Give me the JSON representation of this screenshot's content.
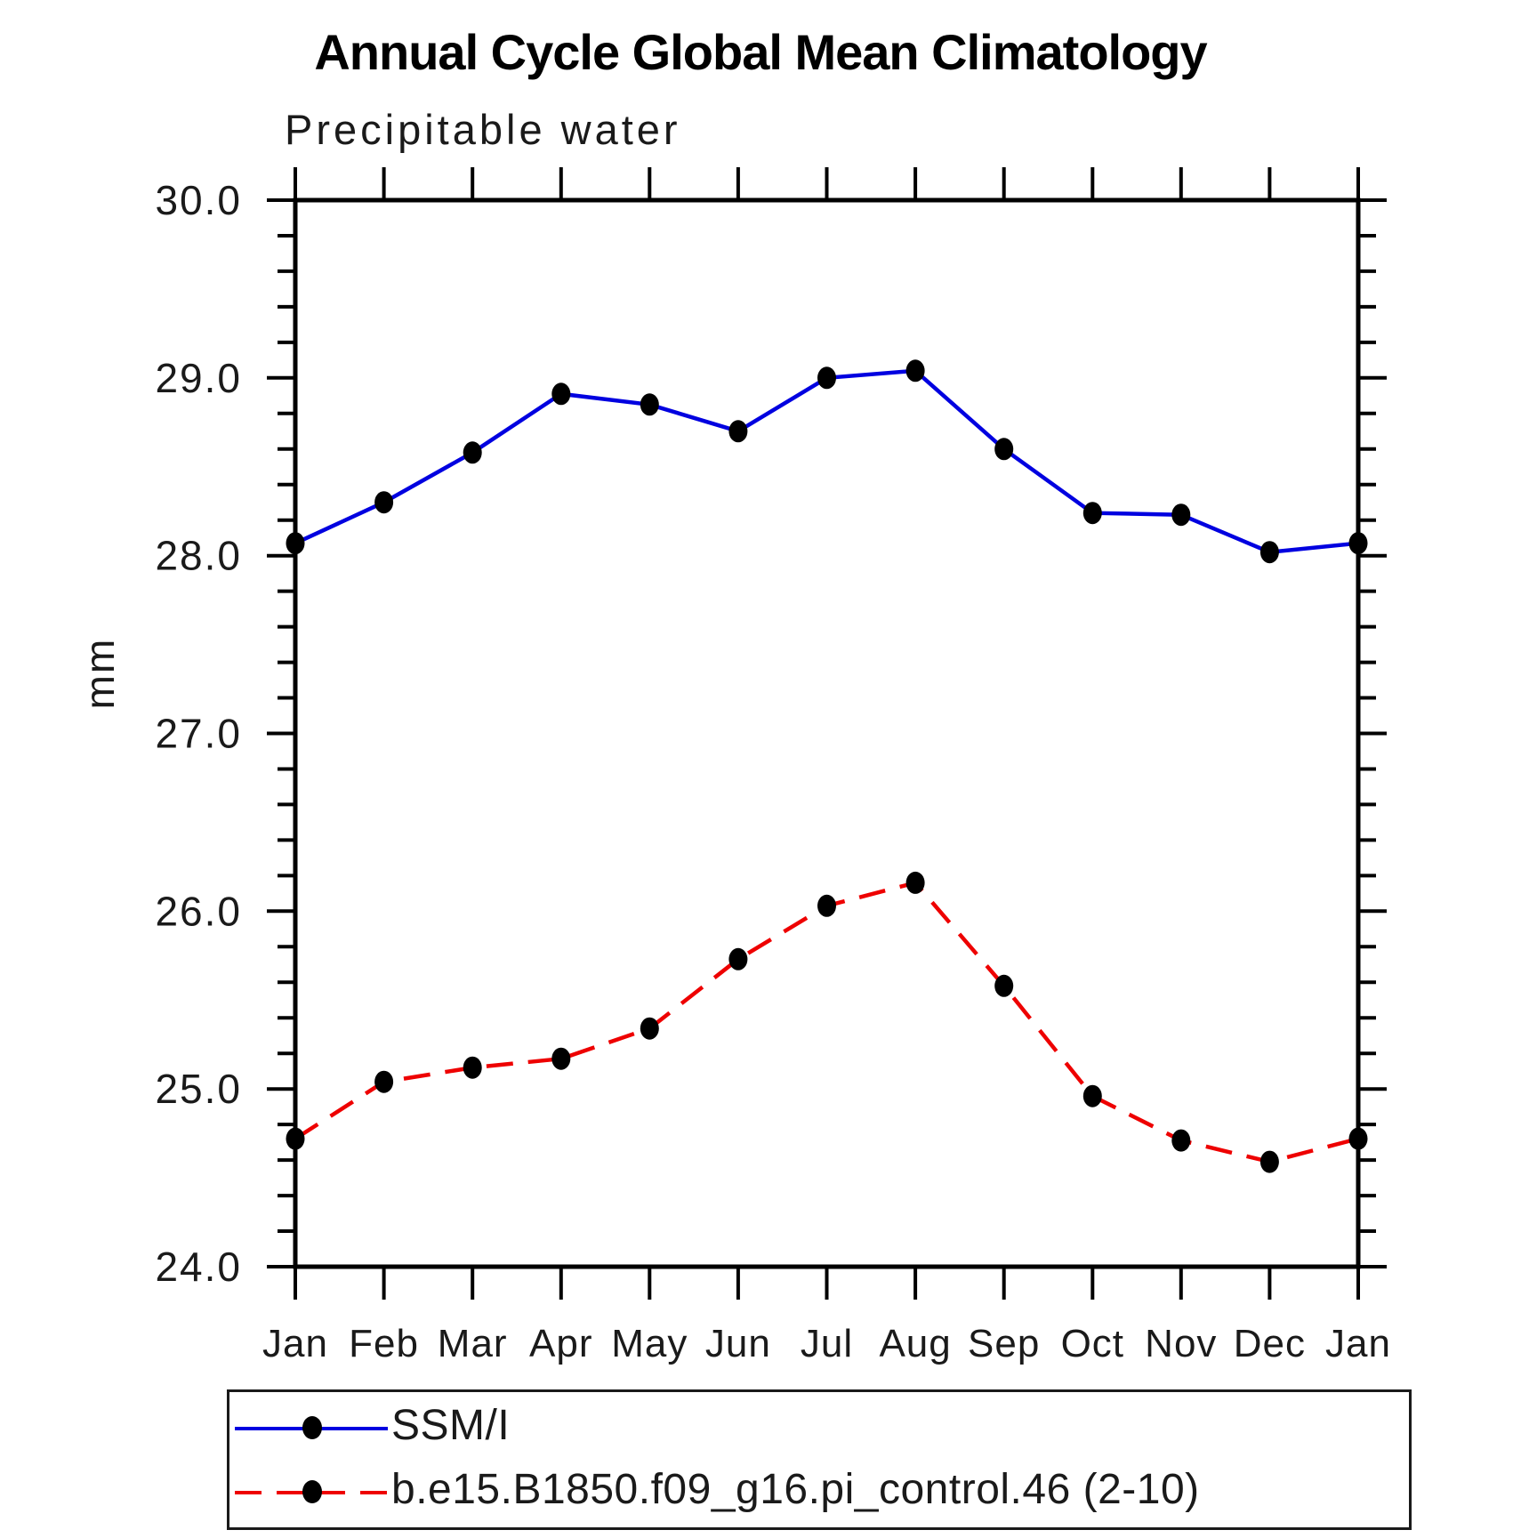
{
  "page": {
    "background": "#ffffff",
    "text_color": "#1a1a1a",
    "axis_color": "#000000"
  },
  "chart_data": {
    "type": "line",
    "title": "Annual Cycle Global Mean Climatology",
    "subtitle": "Precipitable water",
    "xlabel": "",
    "ylabel": "mm",
    "categories": [
      "Jan",
      "Feb",
      "Mar",
      "Apr",
      "May",
      "Jun",
      "Jul",
      "Aug",
      "Sep",
      "Oct",
      "Nov",
      "Dec",
      "Jan"
    ],
    "ylim": [
      24.0,
      30.0
    ],
    "ytick_step": 1.0,
    "ytick_minor_step": 0.2,
    "ytick_labels": [
      "24.0",
      "25.0",
      "26.0",
      "27.0",
      "28.0",
      "29.0",
      "30.0"
    ],
    "grid": false,
    "legend_position": "bottom",
    "marker": "filled-circle",
    "marker_color": "#000000",
    "series": [
      {
        "name": "SSM/I",
        "color": "#0000e0",
        "style": "solid",
        "values": [
          28.07,
          28.3,
          28.58,
          28.91,
          28.85,
          28.7,
          29.0,
          29.04,
          28.6,
          28.24,
          28.23,
          28.02,
          28.07
        ]
      },
      {
        "name": "b.e15.B1850.f09_g16.pi_control.46 (2-10)",
        "color": "#ee0000",
        "style": "dashed",
        "values": [
          24.72,
          25.04,
          25.12,
          25.17,
          25.34,
          25.73,
          26.03,
          26.16,
          25.58,
          24.96,
          24.71,
          24.59,
          24.72
        ]
      }
    ]
  }
}
